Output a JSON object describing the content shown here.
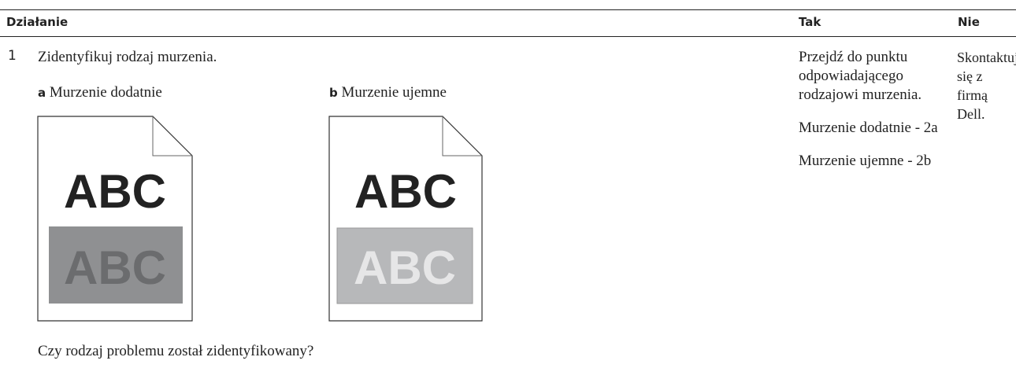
{
  "header": {
    "columns": [
      "Działanie",
      "Tak",
      "Nie"
    ]
  },
  "rows": [
    {
      "number": "1",
      "action": {
        "title": "Zidentyfikuj rodzaj murzenia.",
        "options": [
          {
            "letter": "a",
            "label": "Murzenie dodatnie",
            "image_text": "ABC",
            "shaded_text": "ABC"
          },
          {
            "letter": "b",
            "label": "Murzenie ujemne",
            "image_text": "ABC",
            "shaded_text": "ABC"
          }
        ],
        "question": "Czy rodzaj problemu został zidentyfikowany?"
      },
      "yes": [
        "Przejdź do punktu odpowiadającego rodzajowi murzenia.",
        "Murzenie dodatnie - 2a",
        "Murzenie ujemne - 2b"
      ],
      "no": "Skontaktuj się z firmą Dell."
    }
  ]
}
